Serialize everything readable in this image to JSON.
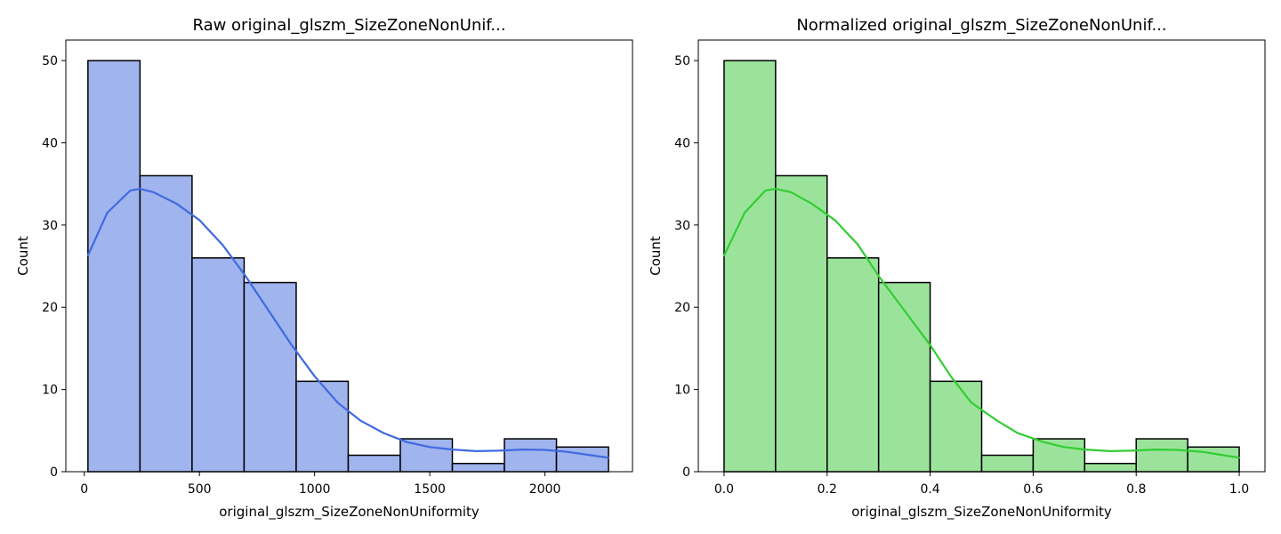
{
  "chart_data": [
    {
      "type": "bar",
      "title": "Raw original_glszm_SizeZoneNonUnif...",
      "xlabel": "original_glszm_SizeZoneNonUniformity",
      "ylabel": "Count",
      "xlim": [
        -80,
        2380
      ],
      "ylim": [
        0,
        52.5
      ],
      "xticks": [
        0,
        500,
        1000,
        1500,
        2000
      ],
      "xtick_labels": [
        "0",
        "500",
        "1000",
        "1500",
        "2000"
      ],
      "yticks": [
        0,
        10,
        20,
        30,
        40,
        50
      ],
      "ytick_labels": [
        "0",
        "10",
        "20",
        "30",
        "40",
        "50"
      ],
      "bin_edges": [
        16,
        242,
        468,
        694,
        920,
        1146,
        1372,
        1598,
        1824,
        2050,
        2276
      ],
      "counts": [
        50,
        36,
        26,
        23,
        11,
        2,
        4,
        1,
        4,
        3
      ],
      "bar_color": "#a0b4ee",
      "kde_color": "#4169e1",
      "kde": {
        "x": [
          16,
          100,
          200,
          242,
          300,
          400,
          500,
          600,
          700,
          800,
          900,
          1000,
          1100,
          1200,
          1300,
          1400,
          1500,
          1600,
          1700,
          1800,
          1900,
          2000,
          2100,
          2200,
          2276
        ],
        "y": [
          26.3,
          31.5,
          34.2,
          34.4,
          34.0,
          32.6,
          30.6,
          27.6,
          23.8,
          19.6,
          15.4,
          11.6,
          8.4,
          6.2,
          4.7,
          3.6,
          3.0,
          2.7,
          2.5,
          2.55,
          2.7,
          2.65,
          2.4,
          2.0,
          1.7
        ]
      },
      "grid": false,
      "legend": "none"
    },
    {
      "type": "bar",
      "title": "Normalized original_glszm_SizeZoneNonUnif...",
      "xlabel": "original_glszm_SizeZoneNonUniformity",
      "ylabel": "Count",
      "xlim": [
        -0.05,
        1.05
      ],
      "ylim": [
        0,
        52.5
      ],
      "xticks": [
        0,
        0.2,
        0.4,
        0.6,
        0.8,
        1.0
      ],
      "xtick_labels": [
        "0.0",
        "0.2",
        "0.4",
        "0.6",
        "0.8",
        "1.0"
      ],
      "yticks": [
        0,
        10,
        20,
        30,
        40,
        50
      ],
      "ytick_labels": [
        "0",
        "10",
        "20",
        "30",
        "40",
        "50"
      ],
      "bin_edges": [
        0,
        0.1,
        0.2,
        0.3,
        0.4,
        0.5,
        0.6,
        0.7,
        0.8,
        0.9,
        1.0
      ],
      "counts": [
        50,
        36,
        26,
        23,
        11,
        2,
        4,
        1,
        4,
        3
      ],
      "bar_color": "#9be39b",
      "kde_color": "#32cd32",
      "kde": {
        "x": [
          0,
          0.04,
          0.08,
          0.1,
          0.13,
          0.17,
          0.215,
          0.26,
          0.3,
          0.35,
          0.4,
          0.44,
          0.48,
          0.53,
          0.57,
          0.62,
          0.66,
          0.7,
          0.75,
          0.79,
          0.84,
          0.88,
          0.93,
          0.97,
          1.0
        ],
        "y": [
          26.3,
          31.5,
          34.2,
          34.4,
          34.0,
          32.6,
          30.6,
          27.6,
          23.8,
          19.6,
          15.4,
          11.6,
          8.4,
          6.2,
          4.7,
          3.6,
          3.0,
          2.7,
          2.5,
          2.55,
          2.7,
          2.65,
          2.4,
          2.0,
          1.7
        ]
      },
      "grid": false,
      "legend": "none"
    }
  ]
}
